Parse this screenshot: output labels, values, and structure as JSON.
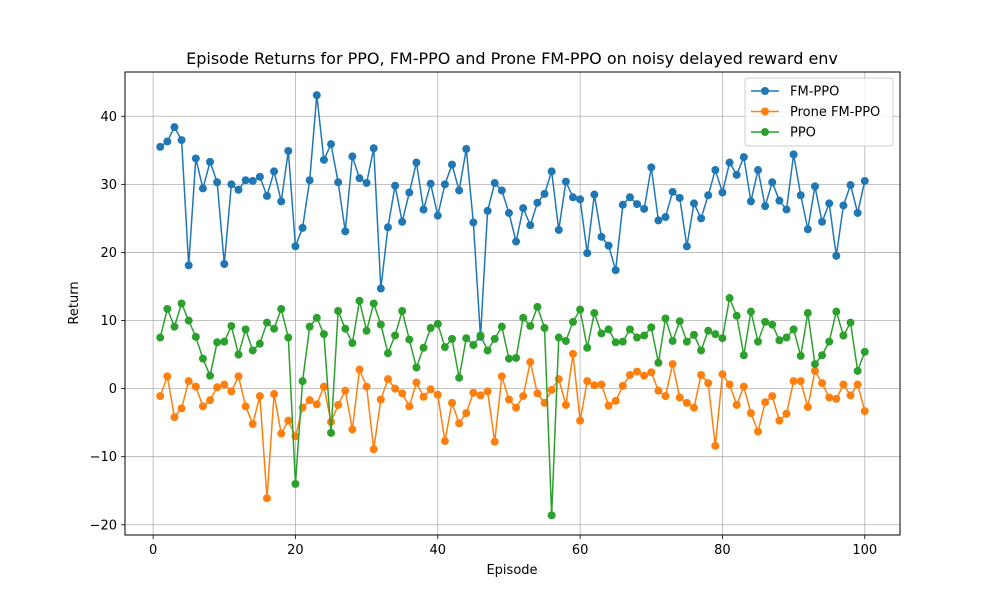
{
  "chart_data": {
    "type": "line",
    "title": "Episode Returns for PPO, FM-PPO and Prone FM-PPO on noisy delayed reward env",
    "xlabel": "Episode",
    "ylabel": "Return",
    "xlim": [
      -3.95,
      104.95
    ],
    "ylim": [
      -21.5,
      46.5
    ],
    "xticks": [
      0,
      20,
      40,
      60,
      80,
      100
    ],
    "yticks": [
      -20,
      -10,
      0,
      10,
      20,
      30,
      40
    ],
    "xtick_labels": [
      "0",
      "20",
      "40",
      "60",
      "80",
      "100"
    ],
    "ytick_labels": [
      "−20",
      "−10",
      "0",
      "10",
      "20",
      "30",
      "40"
    ],
    "grid": true,
    "legend_position": "top-right",
    "x": [
      1,
      2,
      3,
      4,
      5,
      6,
      7,
      8,
      9,
      10,
      11,
      12,
      13,
      14,
      15,
      16,
      17,
      18,
      19,
      20,
      21,
      22,
      23,
      24,
      25,
      26,
      27,
      28,
      29,
      30,
      31,
      32,
      33,
      34,
      35,
      36,
      37,
      38,
      39,
      40,
      41,
      42,
      43,
      44,
      45,
      46,
      47,
      48,
      49,
      50,
      51,
      52,
      53,
      54,
      55,
      56,
      57,
      58,
      59,
      60,
      61,
      62,
      63,
      64,
      65,
      66,
      67,
      68,
      69,
      70,
      71,
      72,
      73,
      74,
      75,
      76,
      77,
      78,
      79,
      80,
      81,
      82,
      83,
      84,
      85,
      86,
      87,
      88,
      89,
      90,
      91,
      92,
      93,
      94,
      95,
      96,
      97,
      98,
      99,
      100
    ],
    "series": [
      {
        "name": "FM-PPO",
        "color": "#1f77b4",
        "values": [
          35.5,
          36.3,
          38.4,
          36.5,
          18.1,
          33.8,
          29.4,
          33.3,
          30.3,
          18.3,
          30.0,
          29.2,
          30.6,
          30.5,
          31.1,
          28.3,
          31.9,
          27.5,
          34.9,
          20.9,
          23.6,
          30.6,
          43.1,
          33.6,
          35.9,
          30.3,
          23.1,
          34.1,
          30.9,
          30.2,
          35.3,
          14.7,
          23.7,
          29.8,
          24.5,
          28.8,
          33.2,
          26.3,
          30.1,
          25.4,
          30.0,
          32.9,
          29.1,
          35.2,
          24.4,
          7.6,
          26.1,
          30.2,
          29.1,
          25.8,
          21.6,
          26.5,
          24.0,
          27.3,
          28.6,
          31.9,
          23.3,
          30.4,
          28.1,
          27.8,
          19.9,
          28.5,
          22.3,
          21.0,
          17.4,
          27.0,
          28.1,
          27.1,
          26.4,
          32.5,
          24.7,
          25.2,
          28.9,
          28.0,
          20.9,
          27.2,
          25.0,
          28.4,
          32.1,
          28.8,
          33.2,
          31.4,
          34.0,
          27.5,
          32.1,
          26.8,
          30.3,
          27.6,
          26.3,
          34.4,
          28.4,
          23.4,
          29.7,
          24.5,
          27.2,
          19.5,
          26.9,
          29.9,
          25.8,
          30.5
        ]
      },
      {
        "name": "Prone FM-PPO",
        "color": "#ff7f0e",
        "values": [
          -1.1,
          1.8,
          -4.2,
          -2.9,
          1.1,
          0.3,
          -2.6,
          -1.7,
          0.2,
          0.6,
          -0.4,
          1.8,
          -2.6,
          -5.2,
          -1.1,
          -16.1,
          -0.8,
          -6.6,
          -4.7,
          -7.0,
          -2.8,
          -1.7,
          -2.3,
          0.3,
          -4.9,
          -2.4,
          -0.3,
          -6.0,
          2.8,
          0.3,
          -8.9,
          -1.6,
          1.4,
          0.0,
          -0.7,
          -2.6,
          0.9,
          -1.2,
          -0.1,
          -0.9,
          -7.7,
          -2.1,
          -5.1,
          -3.6,
          -0.6,
          -1.0,
          -0.4,
          -7.8,
          1.8,
          -1.6,
          -2.8,
          -1.1,
          3.9,
          -0.7,
          -2.1,
          -0.2,
          1.4,
          -2.4,
          5.1,
          -4.7,
          1.1,
          0.5,
          0.6,
          -2.5,
          -1.8,
          0.4,
          2.0,
          2.5,
          1.9,
          2.4,
          -0.3,
          -1.1,
          3.6,
          -1.3,
          -2.1,
          -2.8,
          2.0,
          0.8,
          -8.4,
          2.1,
          0.6,
          -2.4,
          0.3,
          -3.6,
          -6.3,
          -2.0,
          -1.1,
          -4.7,
          -3.7,
          1.1,
          1.1,
          -2.7,
          2.6,
          0.8,
          -1.3,
          -1.5,
          0.6,
          -1.0,
          0.6,
          -3.3
        ]
      },
      {
        "name": "PPO",
        "color": "#2ca02c",
        "values": [
          7.5,
          11.7,
          9.1,
          12.5,
          10.0,
          7.6,
          4.4,
          1.9,
          6.8,
          6.9,
          9.2,
          5.0,
          8.7,
          5.6,
          6.6,
          9.7,
          8.8,
          11.7,
          7.5,
          -14.0,
          1.1,
          9.1,
          10.4,
          8.0,
          -6.5,
          11.4,
          8.8,
          6.7,
          12.9,
          8.5,
          12.5,
          9.4,
          5.2,
          7.8,
          11.4,
          7.2,
          3.1,
          6.0,
          8.9,
          9.5,
          6.1,
          7.3,
          1.6,
          7.4,
          6.4,
          7.8,
          5.6,
          7.3,
          9.1,
          4.4,
          4.5,
          10.4,
          9.2,
          12.0,
          8.9,
          -18.6,
          7.5,
          7.0,
          9.8,
          11.6,
          6.0,
          11.1,
          8.1,
          8.7,
          6.8,
          6.9,
          8.7,
          7.5,
          7.8,
          9.0,
          3.8,
          10.3,
          7.0,
          9.9,
          6.9,
          7.9,
          5.6,
          8.5,
          8.0,
          7.4,
          13.3,
          10.7,
          4.9,
          11.3,
          6.9,
          9.8,
          9.4,
          7.1,
          7.5,
          8.7,
          4.8,
          11.1,
          3.6,
          4.9,
          6.9,
          11.3,
          7.8,
          9.7,
          2.6,
          5.4
        ]
      }
    ]
  }
}
